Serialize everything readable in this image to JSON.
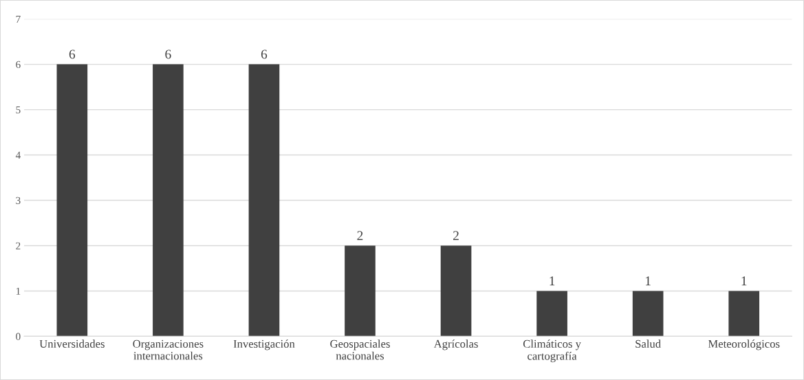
{
  "chart_data": {
    "type": "bar",
    "categories": [
      "Universidades",
      "Organizaciones\ninternacionales",
      "Investigación",
      "Geospaciales\nnacionales",
      "Agrícolas",
      "Climáticos y\ncartografía",
      "Salud",
      "Meteorológicos"
    ],
    "values": [
      6,
      6,
      6,
      2,
      2,
      1,
      1,
      1
    ],
    "color": "#404040",
    "ylim": [
      0,
      7
    ],
    "yticks": [
      0,
      1,
      2,
      3,
      4,
      5,
      6,
      7
    ],
    "grid": "y",
    "data_labels": true,
    "legend": false
  }
}
